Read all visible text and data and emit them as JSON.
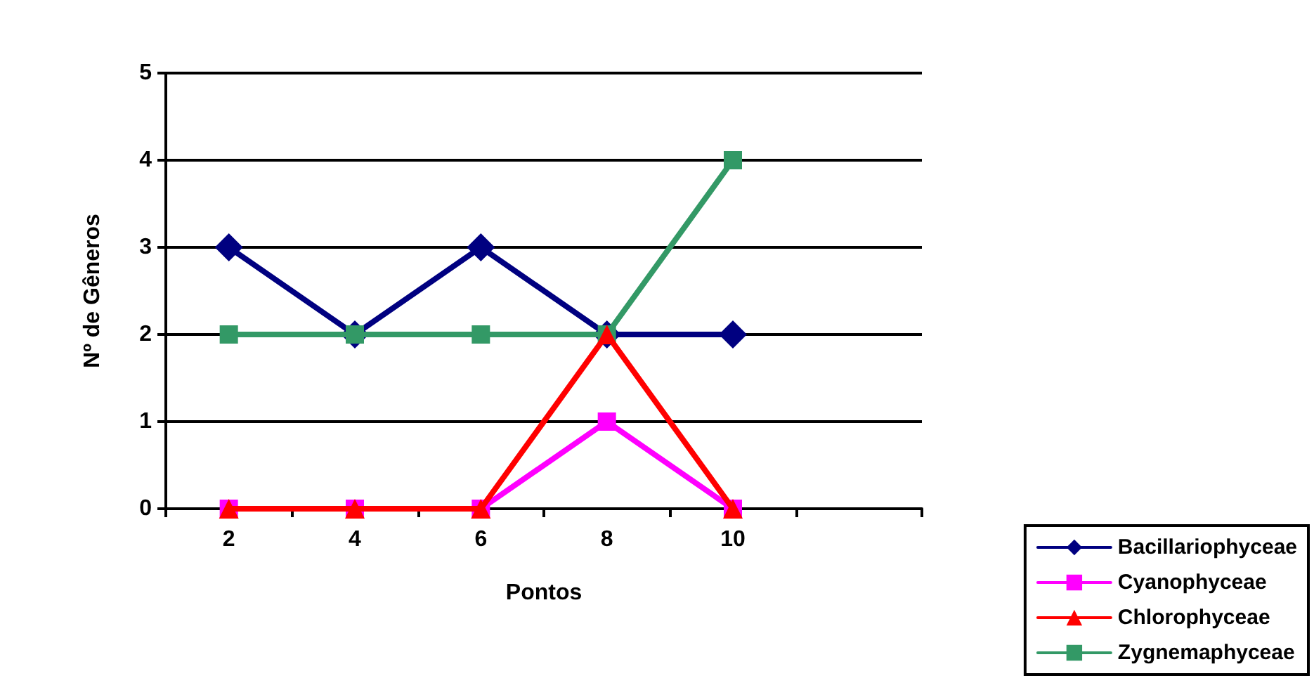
{
  "chart_data": {
    "type": "line",
    "xlabel": "Pontos",
    "ylabel": "Nº de Gêneros",
    "categories": [
      "2",
      "4",
      "6",
      "8",
      "10",
      null
    ],
    "series": [
      {
        "name": "Bacillariophyceae",
        "color": "#000080",
        "marker": "diamond",
        "values": [
          3,
          2,
          3,
          2,
          2,
          null
        ]
      },
      {
        "name": "Cyanophyceae",
        "color": "#ff00ff",
        "marker": "square",
        "values": [
          0,
          0,
          0,
          1,
          0,
          null
        ]
      },
      {
        "name": "Chlorophyceae",
        "color": "#ff0000",
        "marker": "triangle",
        "values": [
          0,
          0,
          0,
          2,
          0,
          null
        ]
      },
      {
        "name": "Zygnemaphyceae",
        "color": "#339966",
        "marker": "square",
        "values": [
          2,
          2,
          2,
          2,
          4,
          null
        ]
      }
    ],
    "ylim": [
      0,
      5
    ],
    "yticks": [
      0,
      1,
      2,
      3,
      4,
      5
    ],
    "grid": "y",
    "legend": "bottom right",
    "line_style": "solid"
  }
}
